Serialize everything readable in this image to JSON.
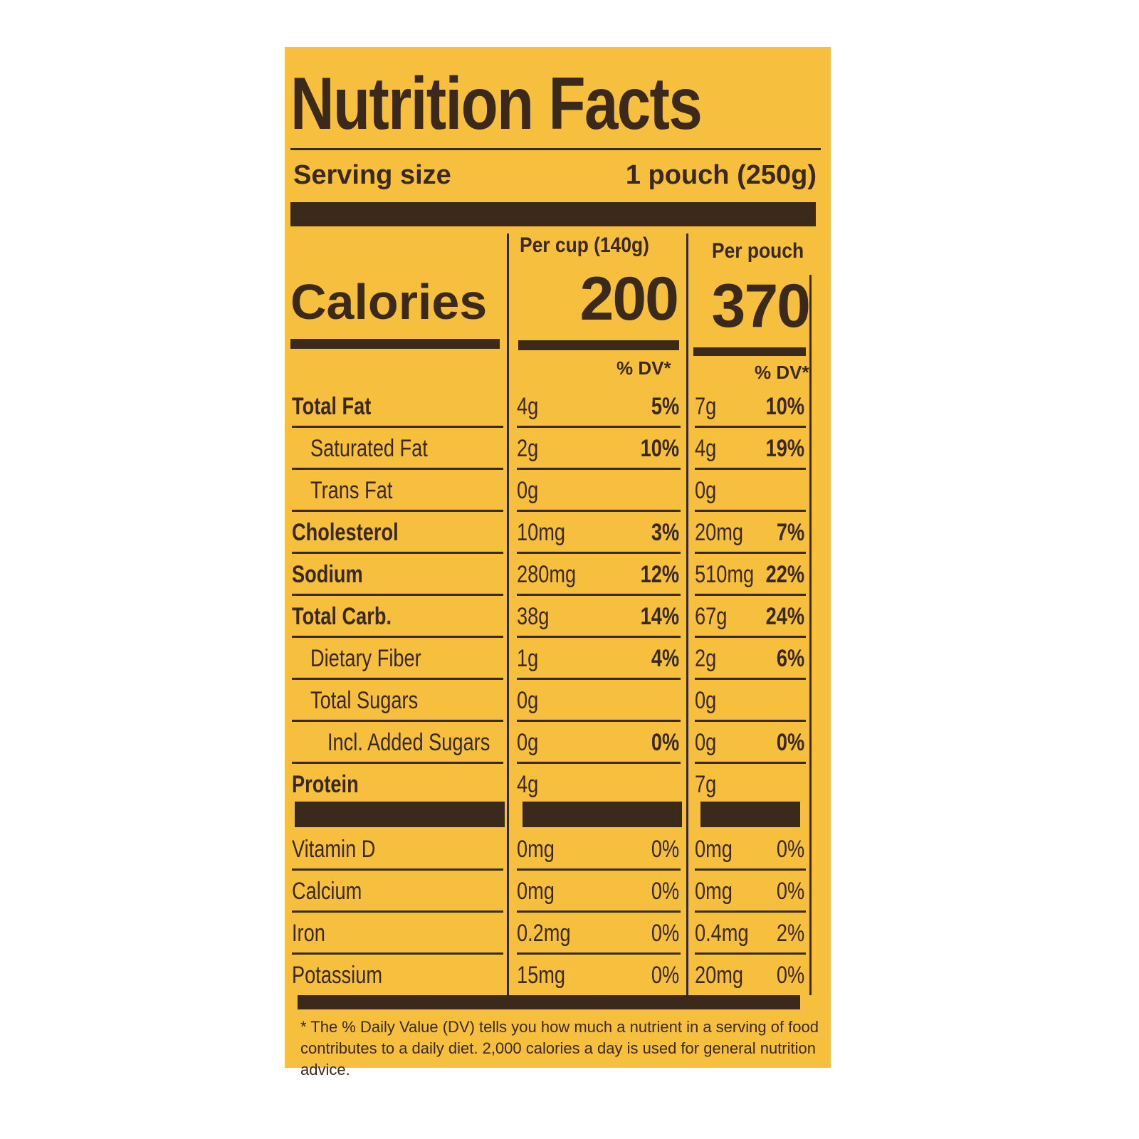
{
  "title": "Nutrition Facts",
  "serving": {
    "label": "Serving size",
    "value": "1 pouch (250g)"
  },
  "columns": [
    {
      "header": "Per cup (140g)",
      "calories": "200",
      "dv_header": "% DV*"
    },
    {
      "header": "Per pouch",
      "calories": "370",
      "dv_header": "% DV*"
    }
  ],
  "calories_label": "Calories",
  "nutrients": [
    {
      "name": "Total Fat",
      "style": "bold",
      "a": "4g",
      "a_dv": "5%",
      "b": "7g",
      "b_dv": "10%"
    },
    {
      "name": "Saturated Fat",
      "style": "ind1",
      "a": "2g",
      "a_dv": "10%",
      "b": "4g",
      "b_dv": "19%"
    },
    {
      "name": "Trans Fat",
      "style": "ind1",
      "a": "0g",
      "a_dv": "",
      "b": "0g",
      "b_dv": ""
    },
    {
      "name": "Cholesterol",
      "style": "bold",
      "a": "10mg",
      "a_dv": "3%",
      "b": "20mg",
      "b_dv": "7%"
    },
    {
      "name": "Sodium",
      "style": "bold",
      "a": "280mg",
      "a_dv": "12%",
      "b": "510mg",
      "b_dv": "22%"
    },
    {
      "name": "Total Carb.",
      "style": "bold",
      "a": "38g",
      "a_dv": "14%",
      "b": "67g",
      "b_dv": "24%"
    },
    {
      "name": "Dietary Fiber",
      "style": "ind1",
      "a": "1g",
      "a_dv": "4%",
      "b": "2g",
      "b_dv": "6%"
    },
    {
      "name": "Total Sugars",
      "style": "ind1",
      "a": "0g",
      "a_dv": "",
      "b": "0g",
      "b_dv": ""
    },
    {
      "name": "Incl. Added Sugars",
      "style": "ind2",
      "a": "0g",
      "a_dv": "0%",
      "b": "0g",
      "b_dv": "0%"
    },
    {
      "name": "Protein",
      "style": "bold",
      "a": "4g",
      "a_dv": "",
      "b": "7g",
      "b_dv": ""
    }
  ],
  "vitamins": [
    {
      "name": "Vitamin D",
      "a": "0mg",
      "a_dv": "0%",
      "b": "0mg",
      "b_dv": "0%"
    },
    {
      "name": "Calcium",
      "a": "0mg",
      "a_dv": "0%",
      "b": "0mg",
      "b_dv": "0%"
    },
    {
      "name": "Iron",
      "a": "0.2mg",
      "a_dv": "0%",
      "b": "0.4mg",
      "b_dv": "2%"
    },
    {
      "name": "Potassium",
      "a": "15mg",
      "a_dv": "0%",
      "b": "20mg",
      "b_dv": "0%"
    }
  ],
  "footnote": "* The % Daily Value (DV) tells you how much a nutrient in a serving of food contributes to a daily diet. 2,000 calories a day is used for general nutrition advice.",
  "colors": {
    "background": "#f6bf3e",
    "ink": "#3b2a1c"
  }
}
